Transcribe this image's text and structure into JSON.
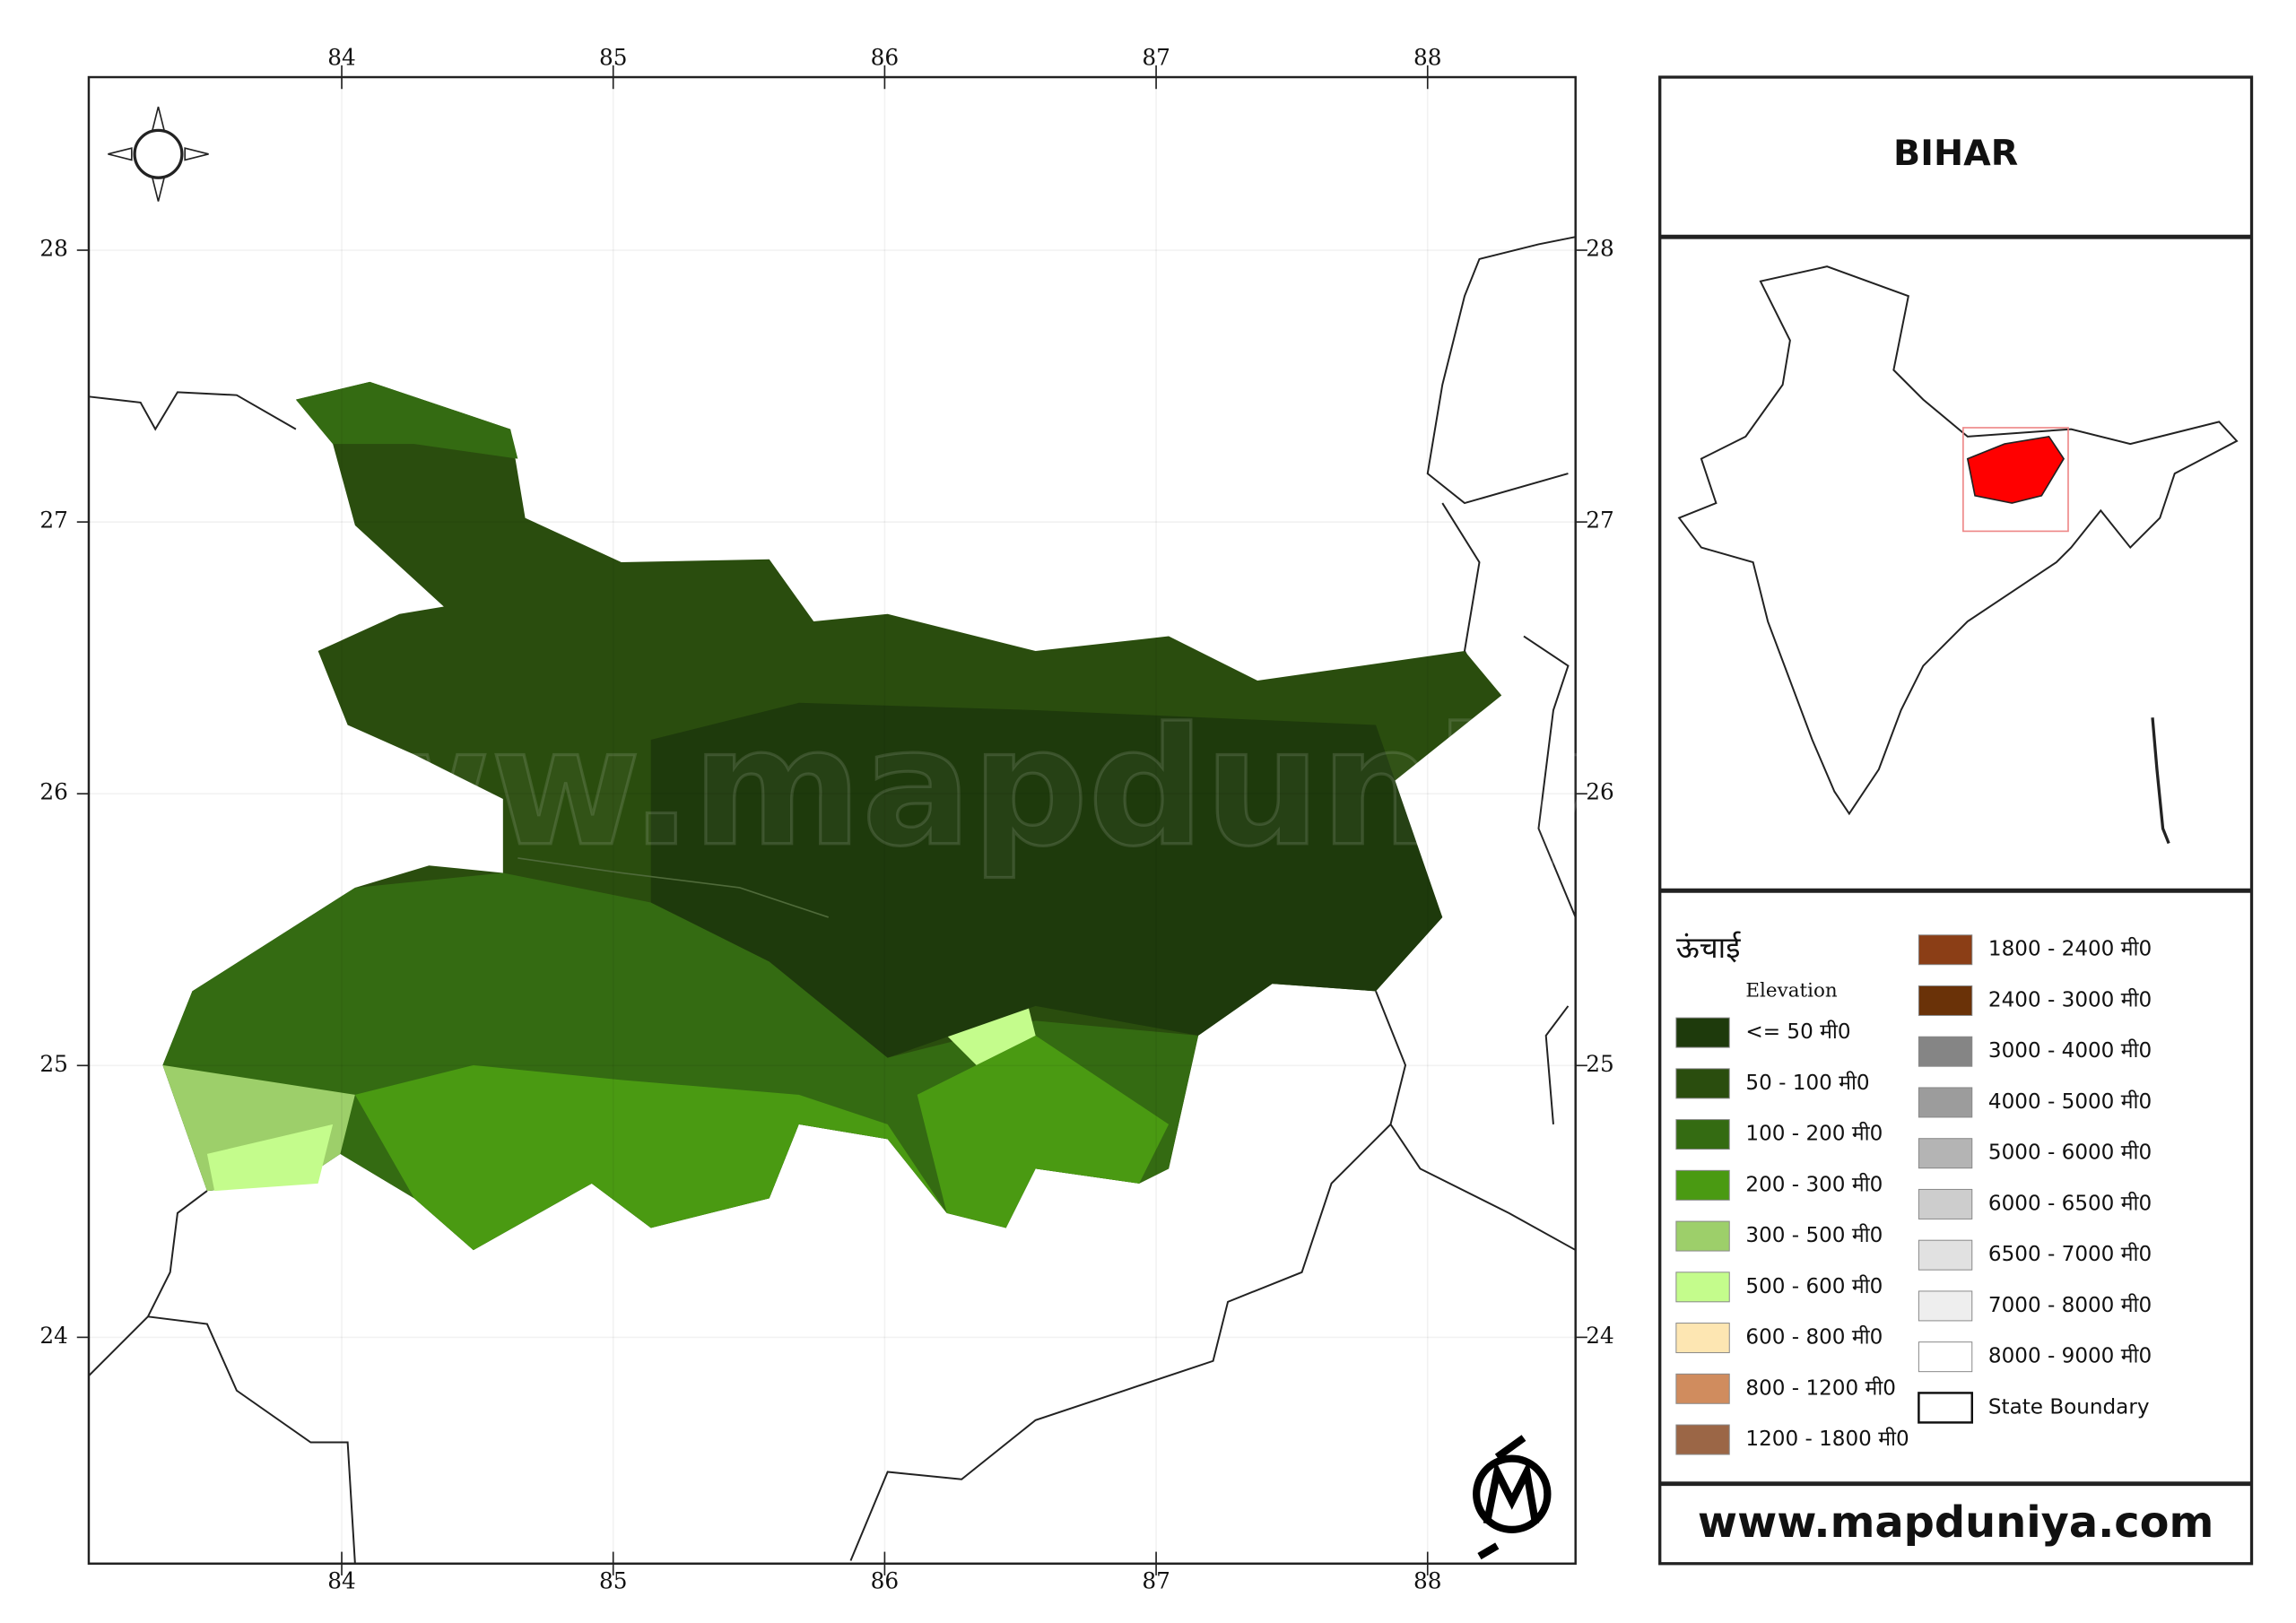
{
  "map": {
    "title": "BIHAR",
    "website": "www.mapduniya.com",
    "watermark": "www.mapduniya.com",
    "lon_ticks": [
      84,
      85,
      86,
      87,
      88
    ],
    "lat_ticks": [
      24,
      25,
      26,
      27,
      28
    ],
    "legend": {
      "title": "ऊंचाई",
      "subtitle": "Elevation",
      "items": [
        {
          "label": "<= 50 मी0",
          "color": "#1e3a0c"
        },
        {
          "label": "50 - 100 मी0",
          "color": "#2a4d0e"
        },
        {
          "label": "100 - 200 मी0",
          "color": "#346b12"
        },
        {
          "label": "200 - 300 मी0",
          "color": "#4a9a12"
        },
        {
          "label": "300 - 500 मी0",
          "color": "#9dcf6a"
        },
        {
          "label": "500 - 600 मी0",
          "color": "#c4fc8c"
        },
        {
          "label": "600 - 800 मी0",
          "color": "#fde6b2"
        },
        {
          "label": "800 - 1200 मी0",
          "color": "#d08c5e"
        },
        {
          "label": "1200 - 1800 मी0",
          "color": "#9b6646"
        },
        {
          "label": "1800 - 2400 मी0",
          "color": "#8b3e16"
        },
        {
          "label": "2400 - 3000 मी0",
          "color": "#6a3208"
        },
        {
          "label": "3000 - 4000 मी0",
          "color": "#858585"
        },
        {
          "label": "4000 - 5000 मी0",
          "color": "#9c9c9c"
        },
        {
          "label": "5000 - 6000 मी0",
          "color": "#b4b4b4"
        },
        {
          "label": "6000 - 6500 मी0",
          "color": "#cdcdcd"
        },
        {
          "label": "6500 - 7000 मी0",
          "color": "#e1e1e1"
        },
        {
          "label": "7000 - 8000 मी0",
          "color": "#eeeeee"
        },
        {
          "label": "8000 - 9000 मी0",
          "color": "#ffffff"
        },
        {
          "label": "State Boundary",
          "color": "#ffffff"
        }
      ]
    }
  }
}
